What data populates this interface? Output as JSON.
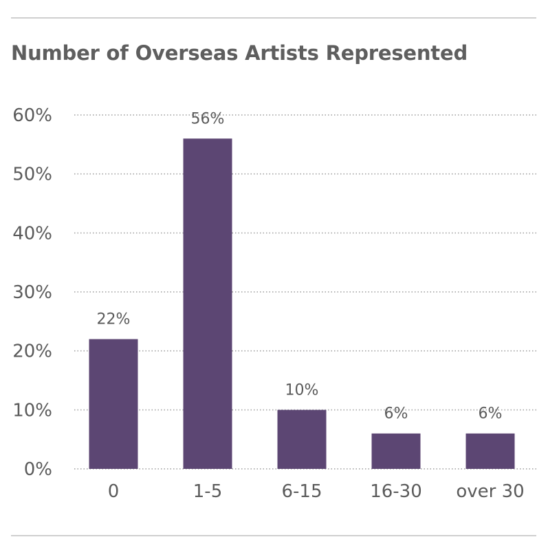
{
  "chart_data": {
    "type": "bar",
    "title": "Number of Overseas Artists Represented",
    "categories": [
      "0",
      "1-5",
      "6-15",
      "16-30",
      "over 30"
    ],
    "values": [
      22,
      56,
      10,
      6,
      6
    ],
    "data_labels": [
      "22%",
      "56%",
      "10%",
      "6%",
      "6%"
    ],
    "ylim": [
      0,
      60
    ],
    "yticks": [
      0,
      10,
      20,
      30,
      40,
      50,
      60
    ],
    "ytick_labels": [
      "0%",
      "10%",
      "20%",
      "30%",
      "40%",
      "50%",
      "60%"
    ],
    "xlabel": "",
    "ylabel": "",
    "grid": true,
    "legend": "none",
    "colors": {
      "bar": "#5c4673",
      "grid": "#9a9a9a",
      "text": "#5a5a5a"
    }
  }
}
